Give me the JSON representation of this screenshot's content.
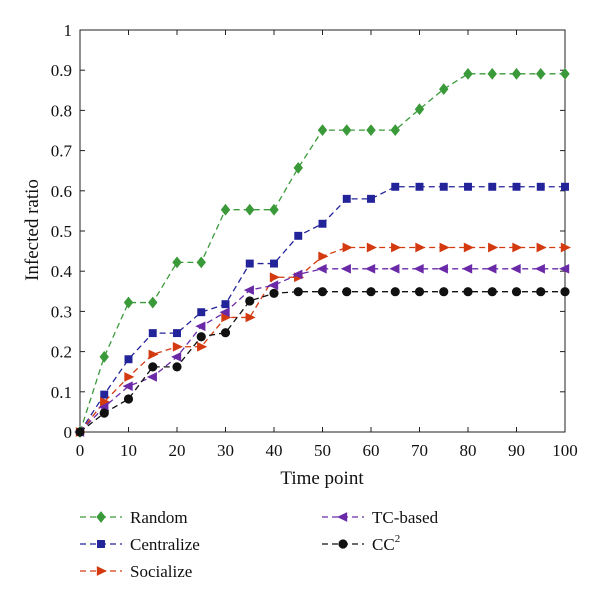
{
  "chart_data": {
    "type": "line",
    "title": "",
    "xlabel": "Time point",
    "ylabel": "Infected ratio",
    "xlim": [
      0,
      100
    ],
    "ylim": [
      0,
      1
    ],
    "xticks": [
      "0",
      "10",
      "20",
      "30",
      "40",
      "50",
      "60",
      "70",
      "80",
      "90",
      "100"
    ],
    "yticks": [
      "0",
      "0.1",
      "0.2",
      "0.3",
      "0.4",
      "0.5",
      "0.6",
      "0.7",
      "0.8",
      "0.9",
      "1"
    ],
    "grid": false,
    "legend_position": "below",
    "x": [
      0,
      5,
      10,
      15,
      20,
      25,
      30,
      35,
      40,
      45,
      50,
      55,
      60,
      65,
      70,
      75,
      80,
      85,
      90,
      95,
      100
    ],
    "series": [
      {
        "name": "Random",
        "color": "#3a9a3a",
        "marker": "diamond",
        "values": [
          0,
          0.187,
          0.322,
          0.322,
          0.422,
          0.422,
          0.553,
          0.553,
          0.553,
          0.657,
          0.751,
          0.751,
          0.751,
          0.751,
          0.803,
          0.853,
          0.891,
          0.891,
          0.891,
          0.891,
          0.891
        ]
      },
      {
        "name": "Centralize",
        "color": "#23239a",
        "marker": "square",
        "values": [
          0,
          0.093,
          0.181,
          0.246,
          0.246,
          0.298,
          0.318,
          0.419,
          0.419,
          0.488,
          0.518,
          0.58,
          0.58,
          0.61,
          0.61,
          0.61,
          0.61,
          0.61,
          0.61,
          0.61,
          0.61
        ]
      },
      {
        "name": "Socialize",
        "color": "#d43a10",
        "marker": "triangle-right",
        "values": [
          0,
          0.075,
          0.137,
          0.193,
          0.212,
          0.212,
          0.285,
          0.285,
          0.385,
          0.385,
          0.437,
          0.459,
          0.459,
          0.459,
          0.459,
          0.459,
          0.459,
          0.459,
          0.459,
          0.459,
          0.459
        ]
      },
      {
        "name": "TC-based",
        "color": "#6a2aa8",
        "marker": "triangle-left",
        "values": [
          0,
          0.062,
          0.114,
          0.137,
          0.187,
          0.263,
          0.298,
          0.353,
          0.365,
          0.392,
          0.406,
          0.406,
          0.406,
          0.406,
          0.406,
          0.406,
          0.406,
          0.406,
          0.406,
          0.406,
          0.406
        ]
      },
      {
        "name": "CC",
        "name_superscript": "2",
        "color": "#111111",
        "marker": "circle",
        "values": [
          0,
          0.047,
          0.082,
          0.162,
          0.162,
          0.237,
          0.247,
          0.326,
          0.345,
          0.349,
          0.349,
          0.349,
          0.349,
          0.349,
          0.349,
          0.349,
          0.349,
          0.349,
          0.349,
          0.349,
          0.349
        ]
      }
    ]
  }
}
